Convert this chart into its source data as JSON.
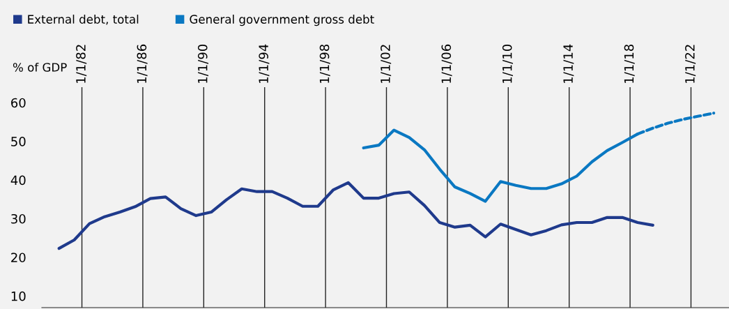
{
  "chart_data": {
    "type": "line",
    "ylabel": "% of GDP",
    "xlim": [
      "1979-05-15",
      "2024-07-01"
    ],
    "ylim": [
      7,
      64
    ],
    "xticks": [
      {
        "value": "1982-01-01",
        "label": "1/1/82"
      },
      {
        "value": "1986-01-01",
        "label": "1/1/86"
      },
      {
        "value": "1990-01-01",
        "label": "1/1/90"
      },
      {
        "value": "1994-01-01",
        "label": "1/1/94"
      },
      {
        "value": "1998-01-01",
        "label": "1/1/98"
      },
      {
        "value": "2002-01-01",
        "label": "1/1/02"
      },
      {
        "value": "2006-01-01",
        "label": "1/1/06"
      },
      {
        "value": "2010-01-01",
        "label": "1/1/10"
      },
      {
        "value": "2014-01-01",
        "label": "1/1/14"
      },
      {
        "value": "2018-01-01",
        "label": "1/1/18"
      },
      {
        "value": "2022-01-01",
        "label": "1/1/22"
      }
    ],
    "yticks": [
      10,
      20,
      30,
      40,
      50,
      60
    ],
    "grid": "x",
    "legend": "top left",
    "series": [
      {
        "name": "External debt, total",
        "color": "#1f3a8c",
        "x": [
          "1980-07",
          "1981-07",
          "1982-07",
          "1983-07",
          "1984-07",
          "1985-07",
          "1986-07",
          "1987-07",
          "1988-07",
          "1989-07",
          "1990-07",
          "1991-07",
          "1992-07",
          "1993-07",
          "1994-07",
          "1995-07",
          "1996-07",
          "1997-07",
          "1998-07",
          "1999-07",
          "2000-07",
          "2001-07",
          "2002-07",
          "2003-07",
          "2004-07",
          "2005-07",
          "2006-07",
          "2007-07",
          "2008-07",
          "2009-07",
          "2010-07",
          "2011-07",
          "2012-07",
          "2013-07",
          "2014-07",
          "2015-07",
          "2016-07",
          "2017-07",
          "2018-07",
          "2019-07"
        ],
        "values": [
          22.3,
          24.5,
          28.7,
          30.5,
          31.7,
          33.1,
          35.2,
          35.6,
          32.6,
          30.8,
          31.7,
          34.9,
          37.7,
          37.0,
          37.0,
          35.3,
          33.2,
          33.2,
          37.4,
          39.3,
          35.3,
          35.3,
          36.5,
          36.9,
          33.4,
          29.0,
          27.8,
          28.3,
          25.3,
          28.6,
          27.2,
          25.8,
          26.9,
          28.4,
          29.0,
          29.0,
          30.3,
          30.3,
          29.0,
          28.3
        ],
        "line_style": "solid"
      },
      {
        "name": "General government gross debt",
        "color": "#0a78c2",
        "x": [
          "2000-07",
          "2001-07",
          "2002-07",
          "2003-07",
          "2004-07",
          "2005-07",
          "2006-07",
          "2007-07",
          "2008-07",
          "2009-07",
          "2010-07",
          "2011-07",
          "2012-07",
          "2013-07",
          "2014-07",
          "2015-07",
          "2016-07",
          "2017-07",
          "2018-07"
        ],
        "values": [
          48.3,
          49.0,
          52.9,
          51.0,
          47.8,
          42.8,
          38.2,
          36.5,
          34.5,
          39.6,
          38.6,
          37.8,
          37.8,
          39.0,
          41.0,
          44.7,
          47.6,
          49.7,
          51.9
        ],
        "line_style": "solid"
      },
      {
        "color": "#0a78c2",
        "x": [
          "2018-07",
          "2019-07",
          "2020-07",
          "2021-07",
          "2022-07",
          "2023-07"
        ],
        "values": [
          51.9,
          53.4,
          54.7,
          55.7,
          56.5,
          57.3
        ],
        "line_style": "dashed"
      }
    ]
  }
}
